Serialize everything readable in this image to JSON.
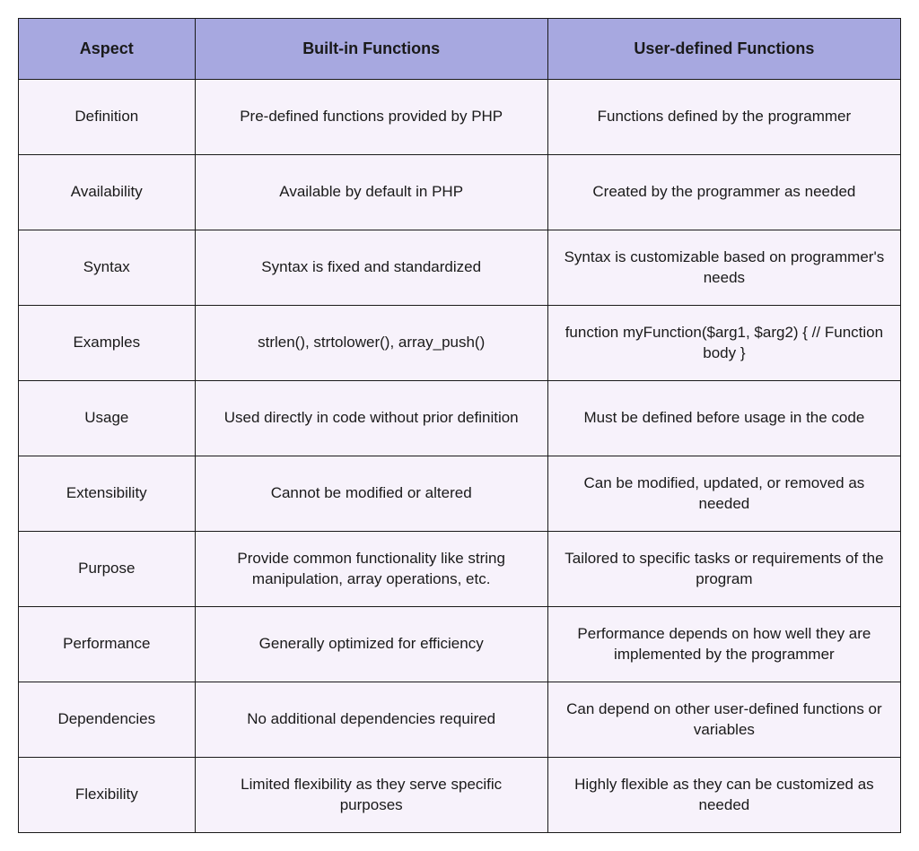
{
  "table": {
    "type": "table",
    "header_bg": "#a7a8e0",
    "row_bg": "#f7f2fb",
    "border_color": "#1a1a1a",
    "text_color": "#1a1a1a",
    "header_fontsize": 18,
    "cell_fontsize": 17,
    "column_widths_pct": [
      20,
      40,
      40
    ],
    "columns": [
      "Aspect",
      "Built-in Functions",
      "User-defined Functions"
    ],
    "rows": [
      [
        "Definition",
        "Pre-defined functions provided by PHP",
        "Functions defined by the programmer"
      ],
      [
        "Availability",
        "Available by default in PHP",
        "Created by the programmer as needed"
      ],
      [
        "Syntax",
        "Syntax is fixed and standardized",
        "Syntax is customizable based on programmer's needs"
      ],
      [
        "Examples",
        "strlen(), strtolower(), array_push()",
        "function myFunction($arg1, $arg2) { // Function body }"
      ],
      [
        "Usage",
        "Used directly in code without prior definition",
        "Must be defined before usage in the code"
      ],
      [
        "Extensibility",
        "Cannot be modified or altered",
        "Can be modified, updated, or removed as needed"
      ],
      [
        "Purpose",
        "Provide common functionality like string manipulation, array operations, etc.",
        "Tailored to specific tasks or requirements of the program"
      ],
      [
        "Performance",
        "Generally optimized for efficiency",
        "Performance depends on how well they are implemented by the programmer"
      ],
      [
        "Dependencies",
        "No additional dependencies required",
        "Can depend on other user-defined functions or variables"
      ],
      [
        "Flexibility",
        "Limited flexibility as they serve specific purposes",
        "Highly flexible as they can be customized as needed"
      ]
    ]
  }
}
